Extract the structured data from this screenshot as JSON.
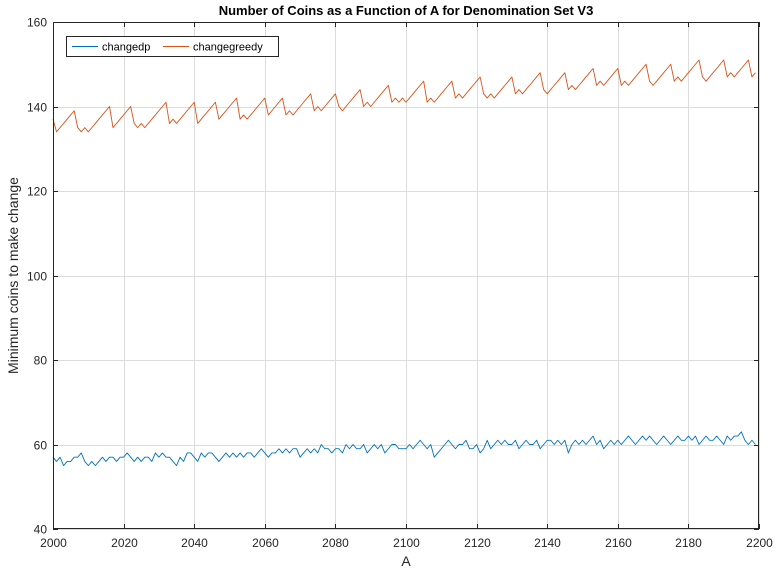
{
  "chart_data": {
    "type": "line",
    "title": "Number of Coins as a Function of A for Denomination Set V3",
    "xlabel": "A",
    "ylabel": "Minimum coins to make change",
    "xlim": [
      2000,
      2200
    ],
    "ylim": [
      40,
      160
    ],
    "xticks": [
      2000,
      2020,
      2040,
      2060,
      2080,
      2100,
      2120,
      2140,
      2160,
      2180,
      2200
    ],
    "yticks": [
      40,
      60,
      80,
      100,
      120,
      140,
      160
    ],
    "xtick_labels": [
      "2000",
      "2020",
      "2040",
      "2060",
      "2080",
      "2100",
      "2120",
      "2140",
      "2160",
      "2180",
      "2200"
    ],
    "ytick_labels": [
      "40",
      "60",
      "80",
      "100",
      "120",
      "140",
      "160"
    ],
    "grid": true,
    "legend_position": "top-left",
    "series": [
      {
        "name": "changedp",
        "color": "#0072BD",
        "x": [
          2000,
          2001,
          2002,
          2003,
          2004,
          2005,
          2006,
          2007,
          2008,
          2009,
          2010,
          2011,
          2012,
          2013,
          2014,
          2015,
          2016,
          2017,
          2018,
          2019,
          2020,
          2021,
          2022,
          2023,
          2024,
          2025,
          2026,
          2027,
          2028,
          2029,
          2030,
          2031,
          2032,
          2033,
          2034,
          2035,
          2036,
          2037,
          2038,
          2039,
          2040,
          2041,
          2042,
          2043,
          2044,
          2045,
          2046,
          2047,
          2048,
          2049,
          2050,
          2051,
          2052,
          2053,
          2054,
          2055,
          2056,
          2057,
          2058,
          2059,
          2060,
          2061,
          2062,
          2063,
          2064,
          2065,
          2066,
          2067,
          2068,
          2069,
          2070,
          2071,
          2072,
          2073,
          2074,
          2075,
          2076,
          2077,
          2078,
          2079,
          2080,
          2081,
          2082,
          2083,
          2084,
          2085,
          2086,
          2087,
          2088,
          2089,
          2090,
          2091,
          2092,
          2093,
          2094,
          2095,
          2096,
          2097,
          2098,
          2099,
          2100,
          2101,
          2102,
          2103,
          2104,
          2105,
          2106,
          2107,
          2108,
          2109,
          2110,
          2111,
          2112,
          2113,
          2114,
          2115,
          2116,
          2117,
          2118,
          2119,
          2120,
          2121,
          2122,
          2123,
          2124,
          2125,
          2126,
          2127,
          2128,
          2129,
          2130,
          2131,
          2132,
          2133,
          2134,
          2135,
          2136,
          2137,
          2138,
          2139,
          2140,
          2141,
          2142,
          2143,
          2144,
          2145,
          2146,
          2147,
          2148,
          2149,
          2150,
          2151,
          2152,
          2153,
          2154,
          2155,
          2156,
          2157,
          2158,
          2159,
          2160,
          2161,
          2162,
          2163,
          2164,
          2165,
          2166,
          2167,
          2168,
          2169,
          2170,
          2171,
          2172,
          2173,
          2174,
          2175,
          2176,
          2177,
          2178,
          2179,
          2180,
          2181,
          2182,
          2183,
          2184,
          2185,
          2186,
          2187,
          2188,
          2189,
          2190,
          2191,
          2192,
          2193,
          2194,
          2195,
          2196,
          2197,
          2198,
          2199
        ],
        "values": [
          57,
          56,
          57,
          55,
          56,
          56,
          57,
          57,
          58,
          56,
          55,
          56,
          55,
          56,
          57,
          56,
          57,
          57,
          56,
          57,
          57,
          58,
          57,
          56,
          57,
          56,
          57,
          57,
          56,
          58,
          57,
          58,
          57,
          57,
          56,
          55,
          57,
          56,
          58,
          58,
          57,
          56,
          58,
          57,
          58,
          58,
          57,
          56,
          57,
          58,
          57,
          58,
          57,
          58,
          57,
          58,
          58,
          57,
          58,
          59,
          58,
          57,
          58,
          58,
          59,
          58,
          59,
          58,
          59,
          59,
          57,
          58,
          59,
          58,
          59,
          58,
          60,
          59,
          59,
          58,
          59,
          59,
          58,
          60,
          59,
          60,
          59,
          59,
          60,
          58,
          59,
          60,
          59,
          60,
          58,
          59,
          60,
          60,
          59,
          59,
          59,
          60,
          59,
          60,
          61,
          60,
          59,
          60,
          57,
          58,
          59,
          60,
          61,
          60,
          59,
          60,
          60,
          61,
          59,
          59,
          60,
          58,
          59,
          61,
          59,
          60,
          61,
          60,
          61,
          60,
          60,
          61,
          59,
          60,
          61,
          60,
          60,
          61,
          59,
          60,
          61,
          61,
          60,
          61,
          60,
          61,
          58,
          60,
          61,
          60,
          61,
          60,
          61,
          62,
          60,
          61,
          59,
          60,
          61,
          60,
          61,
          60,
          61,
          62,
          61,
          60,
          61,
          62,
          61,
          62,
          61,
          60,
          61,
          62,
          61,
          60,
          61,
          62,
          61,
          61,
          62,
          61,
          62,
          60,
          61,
          62,
          61,
          61,
          62,
          61,
          60,
          62,
          61,
          62,
          62,
          63,
          61,
          60,
          61,
          60
        ]
      },
      {
        "name": "changegreedy",
        "color": "#D95319",
        "x": [
          2000,
          2001,
          2002,
          2003,
          2004,
          2005,
          2006,
          2007,
          2008,
          2009,
          2010,
          2011,
          2012,
          2013,
          2014,
          2015,
          2016,
          2017,
          2018,
          2019,
          2020,
          2021,
          2022,
          2023,
          2024,
          2025,
          2026,
          2027,
          2028,
          2029,
          2030,
          2031,
          2032,
          2033,
          2034,
          2035,
          2036,
          2037,
          2038,
          2039,
          2040,
          2041,
          2042,
          2043,
          2044,
          2045,
          2046,
          2047,
          2048,
          2049,
          2050,
          2051,
          2052,
          2053,
          2054,
          2055,
          2056,
          2057,
          2058,
          2059,
          2060,
          2061,
          2062,
          2063,
          2064,
          2065,
          2066,
          2067,
          2068,
          2069,
          2070,
          2071,
          2072,
          2073,
          2074,
          2075,
          2076,
          2077,
          2078,
          2079,
          2080,
          2081,
          2082,
          2083,
          2084,
          2085,
          2086,
          2087,
          2088,
          2089,
          2090,
          2091,
          2092,
          2093,
          2094,
          2095,
          2096,
          2097,
          2098,
          2099,
          2100,
          2101,
          2102,
          2103,
          2104,
          2105,
          2106,
          2107,
          2108,
          2109,
          2110,
          2111,
          2112,
          2113,
          2114,
          2115,
          2116,
          2117,
          2118,
          2119,
          2120,
          2121,
          2122,
          2123,
          2124,
          2125,
          2126,
          2127,
          2128,
          2129,
          2130,
          2131,
          2132,
          2133,
          2134,
          2135,
          2136,
          2137,
          2138,
          2139,
          2140,
          2141,
          2142,
          2143,
          2144,
          2145,
          2146,
          2147,
          2148,
          2149,
          2150,
          2151,
          2152,
          2153,
          2154,
          2155,
          2156,
          2157,
          2158,
          2159,
          2160,
          2161,
          2162,
          2163,
          2164,
          2165,
          2166,
          2167,
          2168,
          2169,
          2170,
          2171,
          2172,
          2173,
          2174,
          2175,
          2176,
          2177,
          2178,
          2179,
          2180,
          2181,
          2182,
          2183,
          2184,
          2185,
          2186,
          2187,
          2188,
          2189,
          2190,
          2191,
          2192,
          2193,
          2194,
          2195,
          2196,
          2197,
          2198,
          2199
        ],
        "values": [
          137,
          134,
          135,
          136,
          137,
          138,
          139,
          135,
          134,
          135,
          134,
          135,
          136,
          137,
          138,
          139,
          140,
          135,
          136,
          137,
          138,
          139,
          140,
          136,
          135,
          136,
          135,
          136,
          137,
          138,
          139,
          140,
          141,
          136,
          137,
          136,
          137,
          138,
          139,
          140,
          141,
          136,
          137,
          138,
          139,
          140,
          141,
          137,
          138,
          139,
          140,
          141,
          142,
          137,
          138,
          137,
          138,
          139,
          140,
          141,
          142,
          138,
          139,
          140,
          141,
          142,
          138,
          139,
          138,
          139,
          140,
          141,
          142,
          143,
          139,
          140,
          139,
          140,
          141,
          142,
          143,
          140,
          139,
          140,
          141,
          142,
          143,
          144,
          140,
          141,
          140,
          141,
          142,
          143,
          144,
          145,
          141,
          142,
          141,
          142,
          141,
          142,
          143,
          144,
          145,
          146,
          141,
          142,
          141,
          142,
          143,
          144,
          145,
          146,
          142,
          143,
          142,
          143,
          144,
          145,
          146,
          147,
          143,
          142,
          143,
          142,
          143,
          144,
          145,
          146,
          147,
          143,
          144,
          143,
          144,
          145,
          146,
          147,
          148,
          144,
          143,
          144,
          145,
          146,
          147,
          148,
          144,
          145,
          144,
          145,
          146,
          147,
          148,
          149,
          145,
          146,
          145,
          146,
          147,
          148,
          149,
          145,
          146,
          145,
          146,
          147,
          148,
          149,
          150,
          146,
          145,
          146,
          147,
          148,
          149,
          150,
          146,
          147,
          146,
          147,
          148,
          149,
          150,
          151,
          147,
          146,
          147,
          148,
          149,
          150,
          151,
          147,
          148,
          147,
          148,
          149,
          150,
          151,
          147,
          148
        ]
      }
    ]
  }
}
